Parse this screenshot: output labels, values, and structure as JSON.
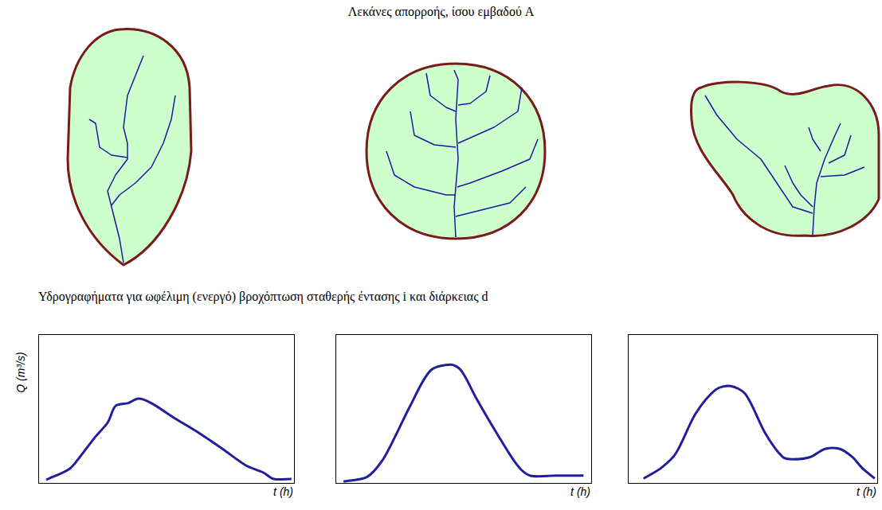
{
  "header": "Λεκάνες απορροής, ίσου εμβαδού A",
  "hydrographs_title": "Υδρογραφήματα για ωφέλιμη (ενεργό) βροχόπτωση σταθερής έντασης i και διάρκειας d",
  "chart_data": [
    {
      "type": "line",
      "ylabel": "Q (m³/s)",
      "xlabel": "t (h)",
      "color": "#1f1f9e",
      "x": [
        2.8,
        12,
        16,
        22,
        27,
        30,
        35,
        39,
        44,
        53,
        63,
        72,
        81,
        88,
        92,
        99
      ],
      "values": [
        2.1,
        9.6,
        17.5,
        31,
        41,
        52,
        54,
        57,
        54,
        44,
        33.5,
        23,
        12,
        7,
        2.7,
        2.7
      ],
      "xlim": [
        0,
        100
      ],
      "ylim": [
        0,
        100
      ],
      "tick_labels": false,
      "grid": false
    },
    {
      "type": "line",
      "xlabel": "t (h)",
      "color": "#1f1f9e",
      "x": [
        2.8,
        12,
        18,
        23,
        29,
        37,
        45,
        49,
        55,
        63,
        71,
        76,
        86,
        97
      ],
      "values": [
        1,
        4,
        15,
        31,
        52,
        76,
        80,
        76,
        57,
        33.5,
        12,
        5,
        5,
        5
      ],
      "xlim": [
        0,
        100
      ],
      "ylim": [
        0,
        100
      ],
      "tick_labels": false,
      "grid": false
    },
    {
      "type": "line",
      "xlabel": "t (h)",
      "color": "#1f1f9e",
      "x": [
        6,
        13,
        19,
        27,
        35,
        41,
        47,
        55,
        62,
        66,
        73,
        79,
        85,
        90,
        94,
        99
      ],
      "values": [
        3,
        10,
        20,
        47,
        63,
        65.5,
        60,
        33.5,
        17.5,
        16,
        17.5,
        23,
        23,
        17.5,
        10,
        3
      ],
      "xlim": [
        0,
        100
      ],
      "ylim": [
        0,
        100
      ],
      "tick_labels": false,
      "grid": false
    }
  ]
}
